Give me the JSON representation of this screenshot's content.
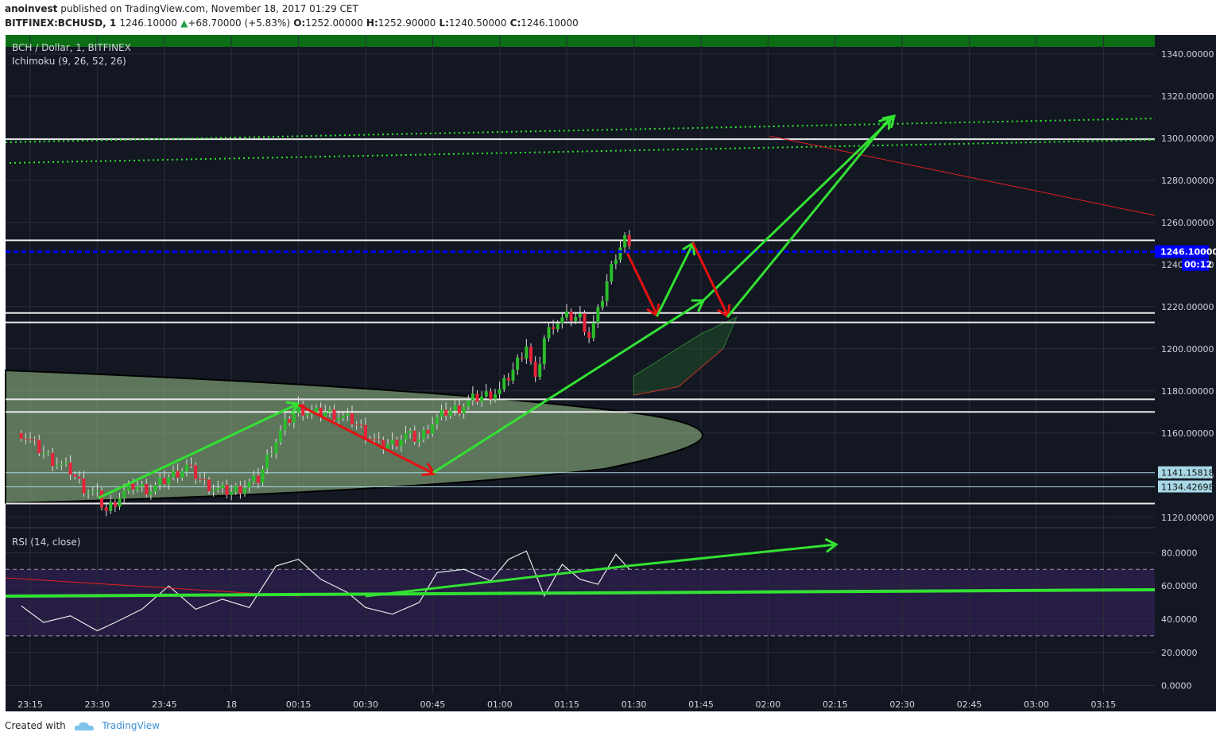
{
  "header": {
    "publisher": "anoinvest",
    "published_text": "published on TradingView.com, November 18, 2017 01:29 CET",
    "symbol": "BITFINEX:BCHUSD, 1",
    "last": "1246.10000",
    "change_arrow": "▲",
    "change": "+68.70000 (+5.83%)",
    "o_label": "O:",
    "o_value": "1252.00000",
    "h_label": "H:",
    "h_value": "1252.90000",
    "l_label": "L:",
    "l_value": "1240.50000",
    "c_label": "C:",
    "c_value": "1246.10000"
  },
  "legend": {
    "series": "BCH / Dollar, 1, BITFINEX",
    "indicator": "Ichimoku (9, 26, 52, 26)",
    "rsi": "RSI (14, close)"
  },
  "footer": {
    "created_with": "Created with",
    "brand": "TradingView",
    "brand_icon": "tradingview-cloud-icon"
  },
  "colors": {
    "background": "#131722",
    "up": "#2bbd2b",
    "down": "#e8233a",
    "green_arrow": "#33e133",
    "red_arrow": "#e81010",
    "price_tag": "#0000ff",
    "level_tag": "#a8d8e6"
  },
  "chart_data": [
    {
      "type": "candlestick",
      "ylim": [
        1115,
        1349
      ],
      "y_ticks": [
        "1120.00000",
        "1140.00000",
        "1160.00000",
        "1180.00000",
        "1200.00000",
        "1220.00000",
        "1240.00000",
        "1260.00000",
        "1280.00000",
        "1300.00000",
        "1320.00000",
        "1340.00000"
      ],
      "x_ticks": [
        "23:15",
        "23:30",
        "23:45",
        "18",
        "00:15",
        "00:30",
        "00:45",
        "01:00",
        "01:15",
        "01:30",
        "01:45",
        "02:00",
        "02:15",
        "02:30",
        "02:45",
        "03:00",
        "03:15"
      ],
      "last_price_label": "1246.10000",
      "countdown_label": "00:12",
      "level_labels": [
        "1141.15818",
        "1134.42698"
      ],
      "horizontal_levels": [
        1251.5,
        1217,
        1212.5,
        1176,
        1170,
        1126.5
      ],
      "close_path": [
        [
          "23:13",
          1160
        ],
        [
          "23:16",
          1154
        ],
        [
          "23:20",
          1147
        ],
        [
          "23:24",
          1142
        ],
        [
          "23:27",
          1134
        ],
        [
          "23:30",
          1130
        ],
        [
          "23:32",
          1123
        ],
        [
          "23:35",
          1130
        ],
        [
          "23:38",
          1135
        ],
        [
          "23:42",
          1133
        ],
        [
          "23:46",
          1139
        ],
        [
          "23:50",
          1144
        ],
        [
          "23:54",
          1136
        ],
        [
          "23:57",
          1133
        ],
        [
          "00:00",
          1132
        ],
        [
          "00:03",
          1135
        ],
        [
          "00:06",
          1138
        ],
        [
          "00:09",
          1153
        ],
        [
          "00:12",
          1164
        ],
        [
          "00:15",
          1172
        ],
        [
          "00:18",
          1169
        ],
        [
          "00:21",
          1170
        ],
        [
          "00:24",
          1168
        ],
        [
          "00:27",
          1166
        ],
        [
          "00:30",
          1160
        ],
        [
          "00:33",
          1154
        ],
        [
          "00:36",
          1155
        ],
        [
          "00:39",
          1159
        ],
        [
          "00:42",
          1157
        ],
        [
          "00:45",
          1165
        ],
        [
          "00:48",
          1170
        ],
        [
          "00:51",
          1172
        ],
        [
          "00:54",
          1176
        ],
        [
          "00:57",
          1178
        ],
        [
          "01:00",
          1180
        ],
        [
          "01:03",
          1190
        ],
        [
          "01:06",
          1202
        ],
        [
          "01:08",
          1184
        ],
        [
          "01:10",
          1205
        ],
        [
          "01:12",
          1212
        ],
        [
          "01:15",
          1215
        ],
        [
          "01:18",
          1215
        ],
        [
          "01:20",
          1206
        ],
        [
          "01:22",
          1217
        ],
        [
          "01:24",
          1232
        ],
        [
          "01:26",
          1245
        ],
        [
          "01:28",
          1253
        ],
        [
          "01:29",
          1246
        ]
      ],
      "ichimoku_cloud_tops": [
        [
          "01:30",
          1187
        ],
        [
          "01:45",
          1207
        ],
        [
          "01:53",
          1215
        ]
      ],
      "ichimoku_cloud_bottoms": [
        [
          "01:30",
          1178
        ],
        [
          "01:40",
          1182
        ],
        [
          "01:50",
          1200
        ]
      ]
    },
    {
      "type": "line",
      "name": "RSI (14, close)",
      "ylim": [
        -5,
        95
      ],
      "y_ticks": [
        "0.0000",
        "20.0000",
        "40.0000",
        "60.0000",
        "80.0000"
      ],
      "bands": [
        30,
        70
      ],
      "values": [
        [
          "23:13",
          48
        ],
        [
          "23:18",
          38
        ],
        [
          "23:24",
          42
        ],
        [
          "23:30",
          33
        ],
        [
          "23:34",
          38
        ],
        [
          "23:40",
          46
        ],
        [
          "23:46",
          60
        ],
        [
          "23:52",
          46
        ],
        [
          "23:58",
          52
        ],
        [
          "00:04",
          47
        ],
        [
          "00:10",
          72
        ],
        [
          "00:15",
          76
        ],
        [
          "00:20",
          64
        ],
        [
          "00:26",
          56
        ],
        [
          "00:30",
          47
        ],
        [
          "00:36",
          43
        ],
        [
          "00:42",
          50
        ],
        [
          "00:46",
          68
        ],
        [
          "00:52",
          70
        ],
        [
          "00:58",
          63
        ],
        [
          "01:02",
          76
        ],
        [
          "01:06",
          81
        ],
        [
          "01:10",
          54
        ],
        [
          "01:14",
          73
        ],
        [
          "01:18",
          64
        ],
        [
          "01:22",
          61
        ],
        [
          "01:26",
          79
        ],
        [
          "01:29",
          70
        ]
      ]
    }
  ]
}
